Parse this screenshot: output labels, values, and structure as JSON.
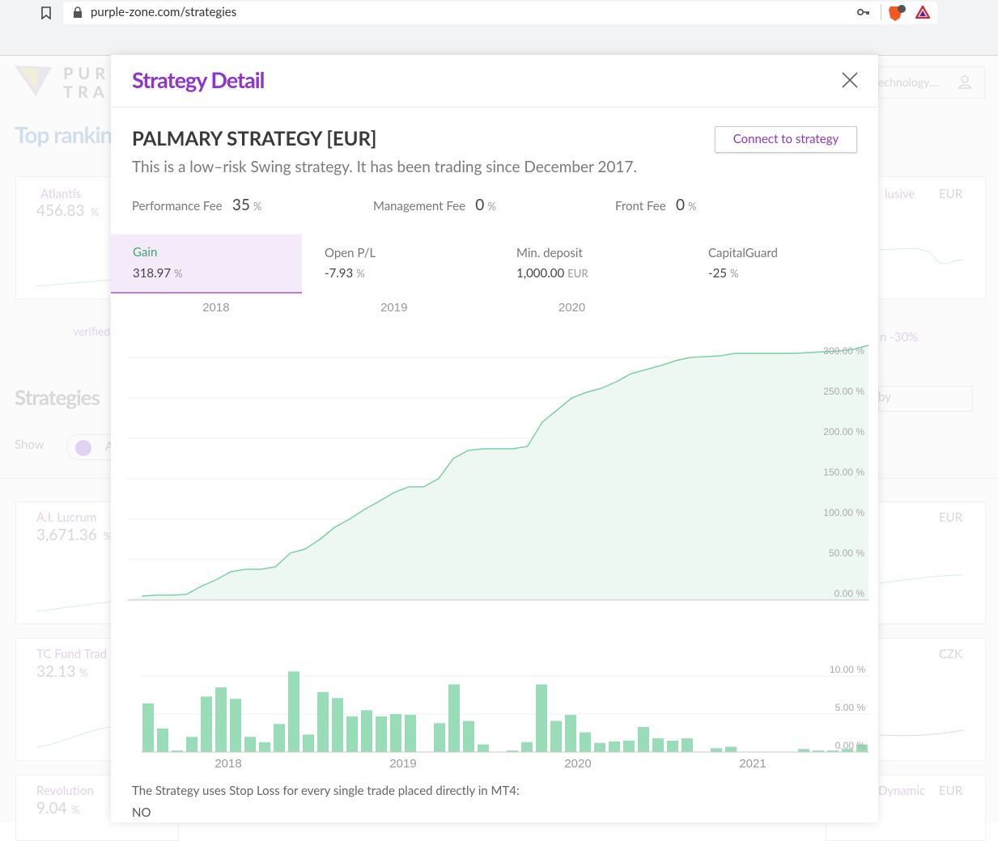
{
  "browser": {
    "url": "purple-zone.com/strategies"
  },
  "background": {
    "logo": [
      "PUR",
      "TRA"
    ],
    "search_text": "echnology....",
    "top_ranking_title": "Top ranking",
    "strategies_title": "Strategies",
    "show_label": "Show",
    "show_option": "A",
    "sort_text": "by",
    "verified_text": "verified",
    "right_note": "n -30%",
    "left_cards": [
      {
        "name": "Atlantis",
        "value": "456.83",
        "unit": "%"
      },
      {
        "name": "A.I. Lucrum",
        "value": "3,671.36",
        "unit": "%"
      },
      {
        "name": "TC Fund Trad",
        "value": "32.13",
        "unit": "%"
      },
      {
        "name": "Revolution",
        "value": "9.04",
        "unit": "%"
      }
    ],
    "right_cards": [
      {
        "name": "lusive",
        "currency": "EUR"
      },
      {
        "name": "",
        "currency": "EUR"
      },
      {
        "name": "",
        "currency": "CZK"
      },
      {
        "name": "Dynamic",
        "currency": "EUR"
      }
    ]
  },
  "modal": {
    "title": "Strategy Detail",
    "strategy_name": "PALMARY STRATEGY [EUR]",
    "description": "This is a low–risk Swing strategy. It has been trading since December 2017.",
    "connect_button": "Connect to strategy",
    "fees": [
      {
        "label": "Performance Fee",
        "value": 35,
        "unit": "%"
      },
      {
        "label": "Management Fee",
        "value": 0,
        "unit": "%"
      },
      {
        "label": "Front Fee",
        "value": 0,
        "unit": "%"
      }
    ],
    "stats": [
      {
        "label": "Gain",
        "value": 318.97,
        "unit": "%"
      },
      {
        "label": "Open P/L",
        "value": -7.93,
        "unit": "%"
      },
      {
        "label": "Min. deposit",
        "value": "1,000.00",
        "unit": "EUR"
      },
      {
        "label": "CapitalGuard",
        "value": -25,
        "unit": "%"
      }
    ],
    "stop_loss_question": "The Strategy uses Stop Loss for every single trade placed directly in MT4:",
    "stop_loss_answer": "NO"
  },
  "chart_data": [
    {
      "type": "line",
      "categories": [
        null,
        null,
        null,
        null,
        null,
        null,
        "2018",
        null,
        null,
        null,
        null,
        null,
        null,
        null,
        null,
        null,
        null,
        null,
        "2019",
        null,
        null,
        null,
        null,
        null,
        null,
        null,
        null,
        null,
        null,
        null,
        "2020",
        null,
        null,
        null,
        null,
        null,
        null,
        null,
        null,
        null,
        null,
        null,
        null,
        null,
        null,
        null,
        null,
        null,
        null,
        null
      ],
      "series": [
        {
          "name": "Gain",
          "color": "#7dd0a6",
          "values": [
            5,
            6,
            6,
            7,
            17,
            25,
            35,
            38,
            38,
            41,
            58,
            63,
            75,
            90,
            100,
            112,
            122,
            133,
            140,
            140,
            150,
            175,
            185,
            187,
            187,
            187,
            190,
            220,
            235,
            250,
            257,
            262,
            270,
            280,
            285,
            290,
            296,
            300,
            301,
            302,
            305,
            305,
            305,
            305,
            305,
            306,
            307,
            308,
            310,
            315
          ]
        }
      ],
      "fill_color": "#eef8f3",
      "ylim": [
        0,
        320
      ],
      "yticks": [
        {
          "value": 0,
          "label": "0.00 %"
        },
        {
          "value": 50,
          "label": "50.00 %"
        },
        {
          "value": 100,
          "label": "100.00 %"
        },
        {
          "value": 150,
          "label": "150.00 %"
        },
        {
          "value": 200,
          "label": "200.00 %"
        },
        {
          "value": 250,
          "label": "250.00 %"
        },
        {
          "value": 300,
          "label": "300.00 %"
        }
      ],
      "grid": true
    },
    {
      "type": "bar",
      "categories": [
        null,
        null,
        null,
        null,
        null,
        null,
        "2018",
        null,
        null,
        null,
        null,
        null,
        null,
        null,
        null,
        null,
        null,
        null,
        "2019",
        null,
        null,
        null,
        null,
        null,
        null,
        null,
        null,
        null,
        null,
        null,
        "2020",
        null,
        null,
        null,
        null,
        null,
        null,
        null,
        null,
        null,
        null,
        null,
        "2021",
        null,
        null,
        null,
        null,
        null,
        null,
        null
      ],
      "values": [
        6.4,
        3.1,
        0.2,
        2.0,
        7.3,
        8.5,
        7.0,
        2.0,
        1.3,
        3.7,
        10.6,
        2.3,
        7.9,
        7.1,
        4.7,
        5.5,
        4.7,
        5.0,
        4.9,
        0,
        3.8,
        8.9,
        4.1,
        1.0,
        0,
        0.2,
        1.3,
        8.9,
        4.1,
        4.9,
        2.6,
        1.2,
        1.4,
        1.5,
        3.3,
        1.8,
        1.5,
        1.8,
        0,
        0.5,
        0.7,
        0,
        0,
        0,
        0,
        0.4,
        0.2,
        0.2,
        0.4,
        1.0
      ],
      "color": "#98dcb8",
      "ylim": [
        0,
        11
      ],
      "yticks": [
        {
          "value": 0,
          "label": "0.00 %"
        },
        {
          "value": 5,
          "label": "5.00 %"
        },
        {
          "value": 10,
          "label": "10.00 %"
        }
      ],
      "grid": true
    }
  ]
}
